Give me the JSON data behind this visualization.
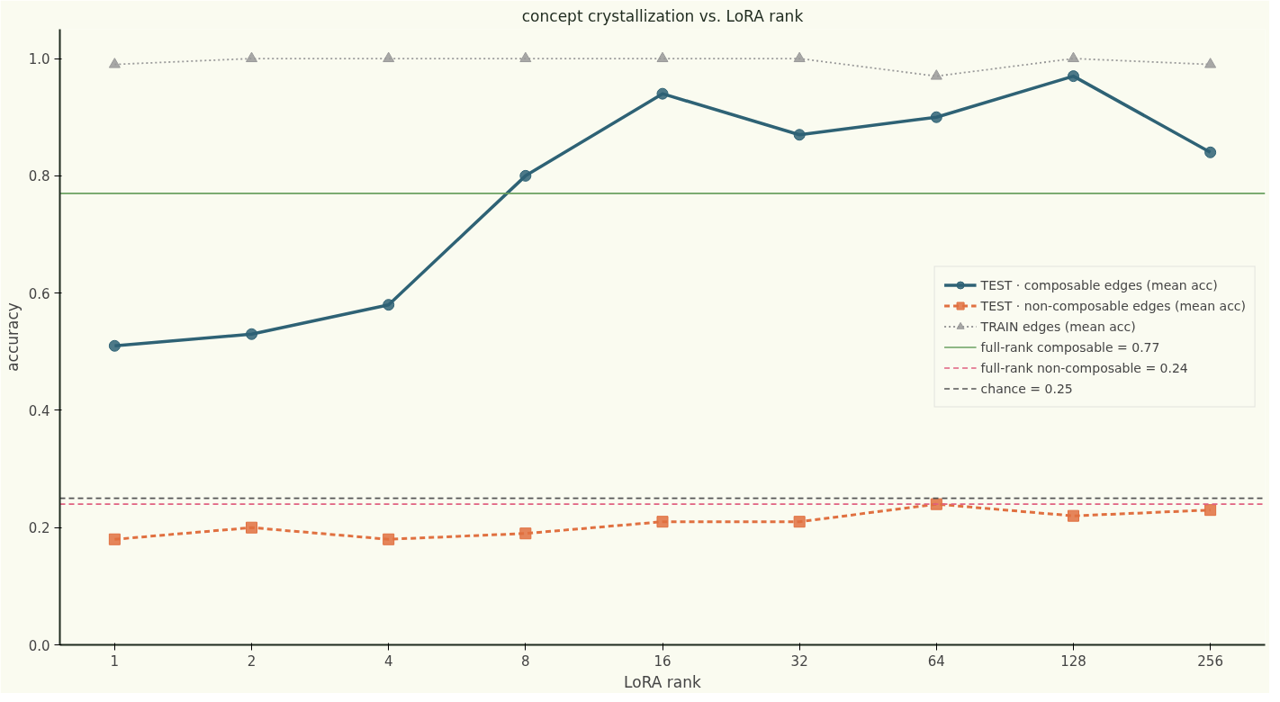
{
  "chart_data": {
    "type": "line",
    "title": "concept crystallization vs. LoRA rank",
    "xlabel": "LoRA rank",
    "ylabel": "accuracy",
    "categories": [
      "1",
      "2",
      "4",
      "8",
      "16",
      "32",
      "64",
      "128",
      "256"
    ],
    "series": [
      {
        "name": "TEST · composable edges (mean acc)",
        "color": "#2e6275",
        "marker": "circle",
        "line_style": "solid",
        "values": [
          0.51,
          0.53,
          0.58,
          0.8,
          0.94,
          0.87,
          0.9,
          0.97,
          0.84
        ]
      },
      {
        "name": "TEST · non-composable edges (mean acc)",
        "color": "#e07040",
        "marker": "square",
        "line_style": "dashed",
        "values": [
          0.18,
          0.2,
          0.18,
          0.19,
          0.21,
          0.21,
          0.24,
          0.22,
          0.23
        ]
      },
      {
        "name": "TRAIN edges (mean acc)",
        "color": "#999999",
        "marker": "triangle",
        "line_style": "dotted",
        "values": [
          0.99,
          1.0,
          1.0,
          1.0,
          1.0,
          1.0,
          0.97,
          1.0,
          0.99
        ]
      }
    ],
    "ref_lines": [
      {
        "axis": "y",
        "value": 0.77,
        "label": "full-rank composable = 0.77",
        "color": "#6aa060",
        "line_style": "solid"
      },
      {
        "axis": "y",
        "value": 0.24,
        "label": "full-rank non-composable = 0.24",
        "color": "#e06080",
        "line_style": "dashed"
      },
      {
        "axis": "y",
        "value": 0.25,
        "label": "chance = 0.25",
        "color": "#555555",
        "line_style": "dashed"
      }
    ],
    "ylim": [
      0,
      1.05
    ],
    "yticks": [
      {
        "value": 0,
        "label": "0.0"
      },
      0.2,
      0.4,
      0.6,
      0.8,
      {
        "value": 1,
        "label": "1.0"
      }
    ],
    "grid": false,
    "legend": "center right"
  }
}
